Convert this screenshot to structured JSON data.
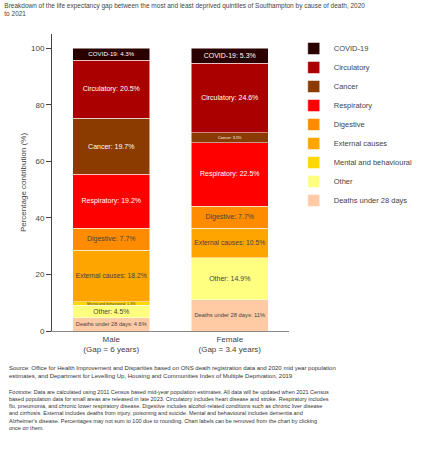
{
  "chart_data": {
    "type": "bar",
    "stacked": true,
    "title": "Breakdown of the life expectancy gap between the most and least deprived quintiles of Southampton by cause of death, 2020\nto 2021",
    "ylabel": "Percentage contribution (%)",
    "categories": [
      "Male\n(Gap = 6 years)",
      "Female\n(Gap = 3.4 years)"
    ],
    "series": [
      {
        "name": "Deaths under 28 days",
        "color": "#FFCBA4",
        "values": [
          4.6,
          11.0
        ],
        "value_labels": [
          "Deaths under 28 days: 4.6%",
          "Deaths under 28 days: 11%"
        ]
      },
      {
        "name": "Other",
        "color": "#FFFF80",
        "values": [
          4.5,
          14.9
        ],
        "value_labels": [
          "Other: 4.5%",
          "Other: 14.9%"
        ]
      },
      {
        "name": "Mental and behavioural",
        "color": "#FFD700",
        "values": [
          1.3,
          0.0
        ],
        "value_labels": [
          "Mental and behavioural: 1.3%",
          null
        ]
      },
      {
        "name": "External causes",
        "color": "#FFA500",
        "values": [
          18.2,
          10.5
        ],
        "value_labels": [
          "External causes: 18.2%",
          "External causes: 10.5%"
        ]
      },
      {
        "name": "Digestive",
        "color": "#FF8C00",
        "values": [
          7.7,
          7.7
        ],
        "value_labels": [
          "Digestive: 7.7%",
          "Digestive: 7.7%"
        ]
      },
      {
        "name": "Respiratory",
        "color": "#FF0000",
        "values": [
          19.2,
          22.5
        ],
        "value_labels": [
          "Respiratory: 19.2%",
          "Respiratory: 22.5%"
        ]
      },
      {
        "name": "Cancer",
        "color": "#8B3A00",
        "values": [
          19.7,
          3.5
        ],
        "value_labels": [
          "Cancer: 19.7%",
          "Cancer: 3.5%"
        ]
      },
      {
        "name": "Circulatory",
        "color": "#AA0000",
        "values": [
          20.5,
          24.6
        ],
        "value_labels": [
          "Circulatory: 20.5%",
          "Circulatory: 24.6%"
        ]
      },
      {
        "name": "COVID-19",
        "color": "#2B0000",
        "values": [
          4.3,
          5.3
        ],
        "value_labels": [
          "COVID-19: 4.3%",
          "COVID-19: 5.3%"
        ]
      }
    ],
    "ylim": [
      0,
      105
    ],
    "yticks": [
      0,
      20,
      40,
      60,
      80,
      100
    ],
    "grid": false,
    "legend": "right",
    "data_labels": true,
    "annotations": [
      "Source: Office for Health Improvement and Disparities based on ONS death registration data and 2020 mid year population\nestimates, and Department for Levelling Up, Housing and Communities Index of Multiple Deprivation, 2019",
      "Footnote: Data are calculated using 2011 Census based mid-year population estimates. All data will be updated when 2021 Census\nbased population data for small areas are released in late 2023. Circulatory includes heart disease and stroke. Respiratory includes\nflu, pneumonia, and chronic lower respiratory disease. Digestive includes alcohol-related conditions such as chronic liver disease\nand cirrhosis. External includes deaths from injury, poisoning and suicide. Mental and behavioural includes dementia and\nAlzheimer's disease. Percentages may not sum to 100 due to rounding. Chart labels can be removed from the chart by clicking\nonce on them."
    ]
  }
}
